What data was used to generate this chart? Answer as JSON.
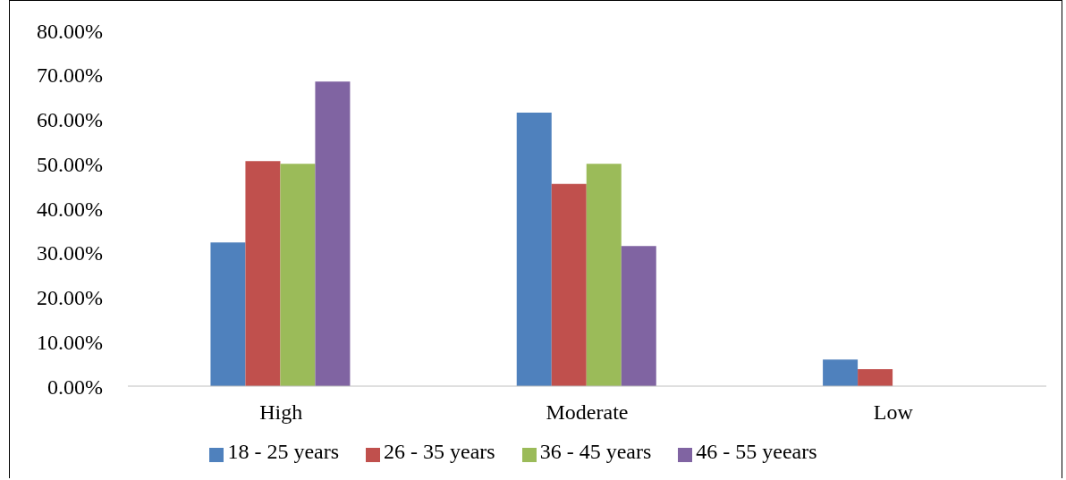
{
  "chart_data": {
    "type": "bar",
    "categories": [
      "High",
      "Moderate",
      "Low"
    ],
    "series": [
      {
        "name": "18 - 25 years",
        "color": "#4f81bd",
        "values": [
          32.3,
          61.5,
          6.0
        ]
      },
      {
        "name": "26 - 35 years",
        "color": "#c0504d",
        "values": [
          50.6,
          45.5,
          3.8
        ]
      },
      {
        "name": "36 - 45 years",
        "color": "#9bbb59",
        "values": [
          50.0,
          50.0,
          0
        ]
      },
      {
        "name": "46 - 55 yeears",
        "color": "#8064a2",
        "values": [
          68.5,
          31.5,
          0
        ]
      }
    ],
    "ylim": [
      0,
      80
    ],
    "yticks": [
      {
        "value": 0,
        "label": "0.00%"
      },
      {
        "value": 10,
        "label": "10.00%"
      },
      {
        "value": 20,
        "label": "20.00%"
      },
      {
        "value": 30,
        "label": "30.00%"
      },
      {
        "value": 40,
        "label": "40.00%"
      },
      {
        "value": 50,
        "label": "50.00%"
      },
      {
        "value": 60,
        "label": "60.00%"
      },
      {
        "value": 70,
        "label": "70.00%"
      },
      {
        "value": 80,
        "label": "80.00%"
      }
    ],
    "grid": false,
    "legend": "bottom"
  }
}
